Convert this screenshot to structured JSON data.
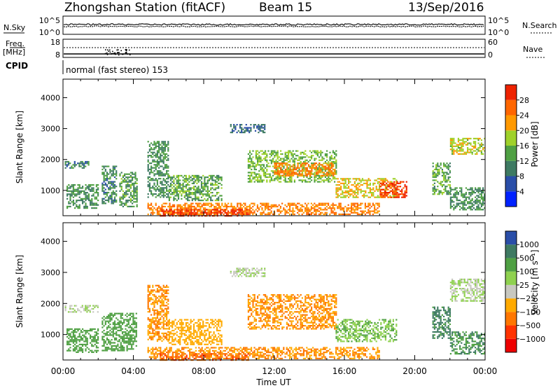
{
  "header": {
    "station": "Zhongshan Station (fitACF)",
    "beam": "Beam 15",
    "date": "13/Sep/2016"
  },
  "strips": {
    "nsky_label": "N.Sky",
    "nsky_ticks": [
      "10^5",
      "10^0"
    ],
    "nsearch_label": "N.Search",
    "nsearch_ticks": [
      "10^5",
      "10^0"
    ],
    "freq_label": "Freq.",
    "freq_unit": "[MHz]",
    "freq_ticks": [
      "18",
      "8"
    ],
    "nave_label": "Nave",
    "nave_ticks": [
      "60",
      "0"
    ],
    "cpid_label": "CPID",
    "cpid_text": "normal (fast stereo) 153"
  },
  "chart_data": [
    {
      "type": "heatmap",
      "name": "power",
      "ylabel": "Slant Range [km]",
      "ylim": [
        180,
        4600
      ],
      "yticks": [
        "1000",
        "2000",
        "3000",
        "4000"
      ],
      "xlabel": "Time UT",
      "xlim_hours": [
        0,
        24
      ],
      "xticks": [
        "00:00",
        "04:00",
        "08:00",
        "12:00",
        "16:00",
        "20:00",
        "00:00"
      ],
      "colorbar": {
        "label": "Power [dB]",
        "ticks": [
          "4",
          "8",
          "12",
          "16",
          "20",
          "24",
          "28"
        ],
        "colors": [
          "#0022ff",
          "#2a4ea8",
          "#3e7a62",
          "#4fa043",
          "#9fd12a",
          "#ff9900",
          "#ff6600",
          "#ee2200"
        ]
      },
      "echo_regions": [
        {
          "t0": 0.1,
          "t1": 1.5,
          "r0": 1750,
          "r1": 1950,
          "value": 8
        },
        {
          "t0": 0.2,
          "t1": 2.0,
          "r0": 450,
          "r1": 1200,
          "value": 10
        },
        {
          "t0": 2.2,
          "t1": 3.0,
          "r0": 600,
          "r1": 1800,
          "value": 9
        },
        {
          "t0": 3.2,
          "t1": 4.2,
          "r0": 500,
          "r1": 1600,
          "value": 11
        },
        {
          "t0": 4.8,
          "t1": 6.0,
          "r0": 800,
          "r1": 2600,
          "value": 10
        },
        {
          "t0": 6.0,
          "t1": 9.0,
          "r0": 700,
          "r1": 1500,
          "value": 12
        },
        {
          "t0": 4.8,
          "t1": 18.0,
          "r0": 240,
          "r1": 600,
          "value": 22
        },
        {
          "t0": 5.5,
          "t1": 10.5,
          "r0": 200,
          "r1": 400,
          "value": 28
        },
        {
          "t0": 10.5,
          "t1": 15.5,
          "r0": 1300,
          "r1": 2300,
          "value": 14
        },
        {
          "t0": 12.0,
          "t1": 15.5,
          "r0": 1500,
          "r1": 1900,
          "value": 22
        },
        {
          "t0": 15.5,
          "t1": 19.0,
          "r0": 800,
          "r1": 1400,
          "value": 18
        },
        {
          "t0": 18.0,
          "t1": 19.5,
          "r0": 800,
          "r1": 1300,
          "value": 27
        },
        {
          "t0": 9.5,
          "t1": 11.5,
          "r0": 2900,
          "r1": 3150,
          "value": 6
        },
        {
          "t0": 21.0,
          "t1": 22.0,
          "r0": 900,
          "r1": 1900,
          "value": 12
        },
        {
          "t0": 22.0,
          "t1": 24.0,
          "r0": 2200,
          "r1": 2700,
          "value": 17
        },
        {
          "t0": 22.0,
          "t1": 24.0,
          "r0": 400,
          "r1": 1100,
          "value": 10
        }
      ]
    },
    {
      "type": "heatmap",
      "name": "velocity",
      "ylabel": "Slant Range [km]",
      "ylim": [
        180,
        4600
      ],
      "yticks": [
        "1000",
        "2000",
        "3000",
        "4000"
      ],
      "xlabel": "Time UT",
      "xlim_hours": [
        0,
        24
      ],
      "xticks": [
        "00:00",
        "04:00",
        "08:00",
        "12:00",
        "16:00",
        "20:00",
        "00:00"
      ],
      "colorbar": {
        "label": "Velocity [m s⁻¹]",
        "ticks": [
          "1000",
          "500",
          "100",
          "25",
          "−25",
          "−100",
          "−500",
          "−1000"
        ],
        "colors": [
          "#2a4ea8",
          "#3e7a62",
          "#4fa043",
          "#8fd14f",
          "#c8c8c0",
          "#ffaa00",
          "#ff7700",
          "#ff3300",
          "#ee0000"
        ]
      },
      "echo_regions": [
        {
          "t0": 0.1,
          "t1": 2.0,
          "r0": 1750,
          "r1": 1950,
          "value": 0
        },
        {
          "t0": 0.2,
          "t1": 2.0,
          "r0": 450,
          "r1": 1200,
          "value": 150
        },
        {
          "t0": 2.2,
          "t1": 4.2,
          "r0": 500,
          "r1": 1700,
          "value": 150
        },
        {
          "t0": 4.8,
          "t1": 6.0,
          "r0": 800,
          "r1": 2600,
          "value": -300
        },
        {
          "t0": 6.0,
          "t1": 9.0,
          "r0": 700,
          "r1": 1500,
          "value": -200
        },
        {
          "t0": 4.8,
          "t1": 18.0,
          "r0": 240,
          "r1": 600,
          "value": -300
        },
        {
          "t0": 5.5,
          "t1": 10.5,
          "r0": 200,
          "r1": 400,
          "value": -600
        },
        {
          "t0": 10.5,
          "t1": 15.5,
          "r0": 1200,
          "r1": 2300,
          "value": -300
        },
        {
          "t0": 15.5,
          "t1": 19.0,
          "r0": 800,
          "r1": 1500,
          "value": 50
        },
        {
          "t0": 9.5,
          "t1": 11.5,
          "r0": 2900,
          "r1": 3150,
          "value": 0
        },
        {
          "t0": 21.0,
          "t1": 22.0,
          "r0": 900,
          "r1": 1900,
          "value": 400
        },
        {
          "t0": 22.0,
          "t1": 24.0,
          "r0": 2100,
          "r1": 2800,
          "value": 0
        },
        {
          "t0": 22.0,
          "t1": 24.0,
          "r0": 400,
          "r1": 1100,
          "value": 300
        }
      ]
    }
  ]
}
